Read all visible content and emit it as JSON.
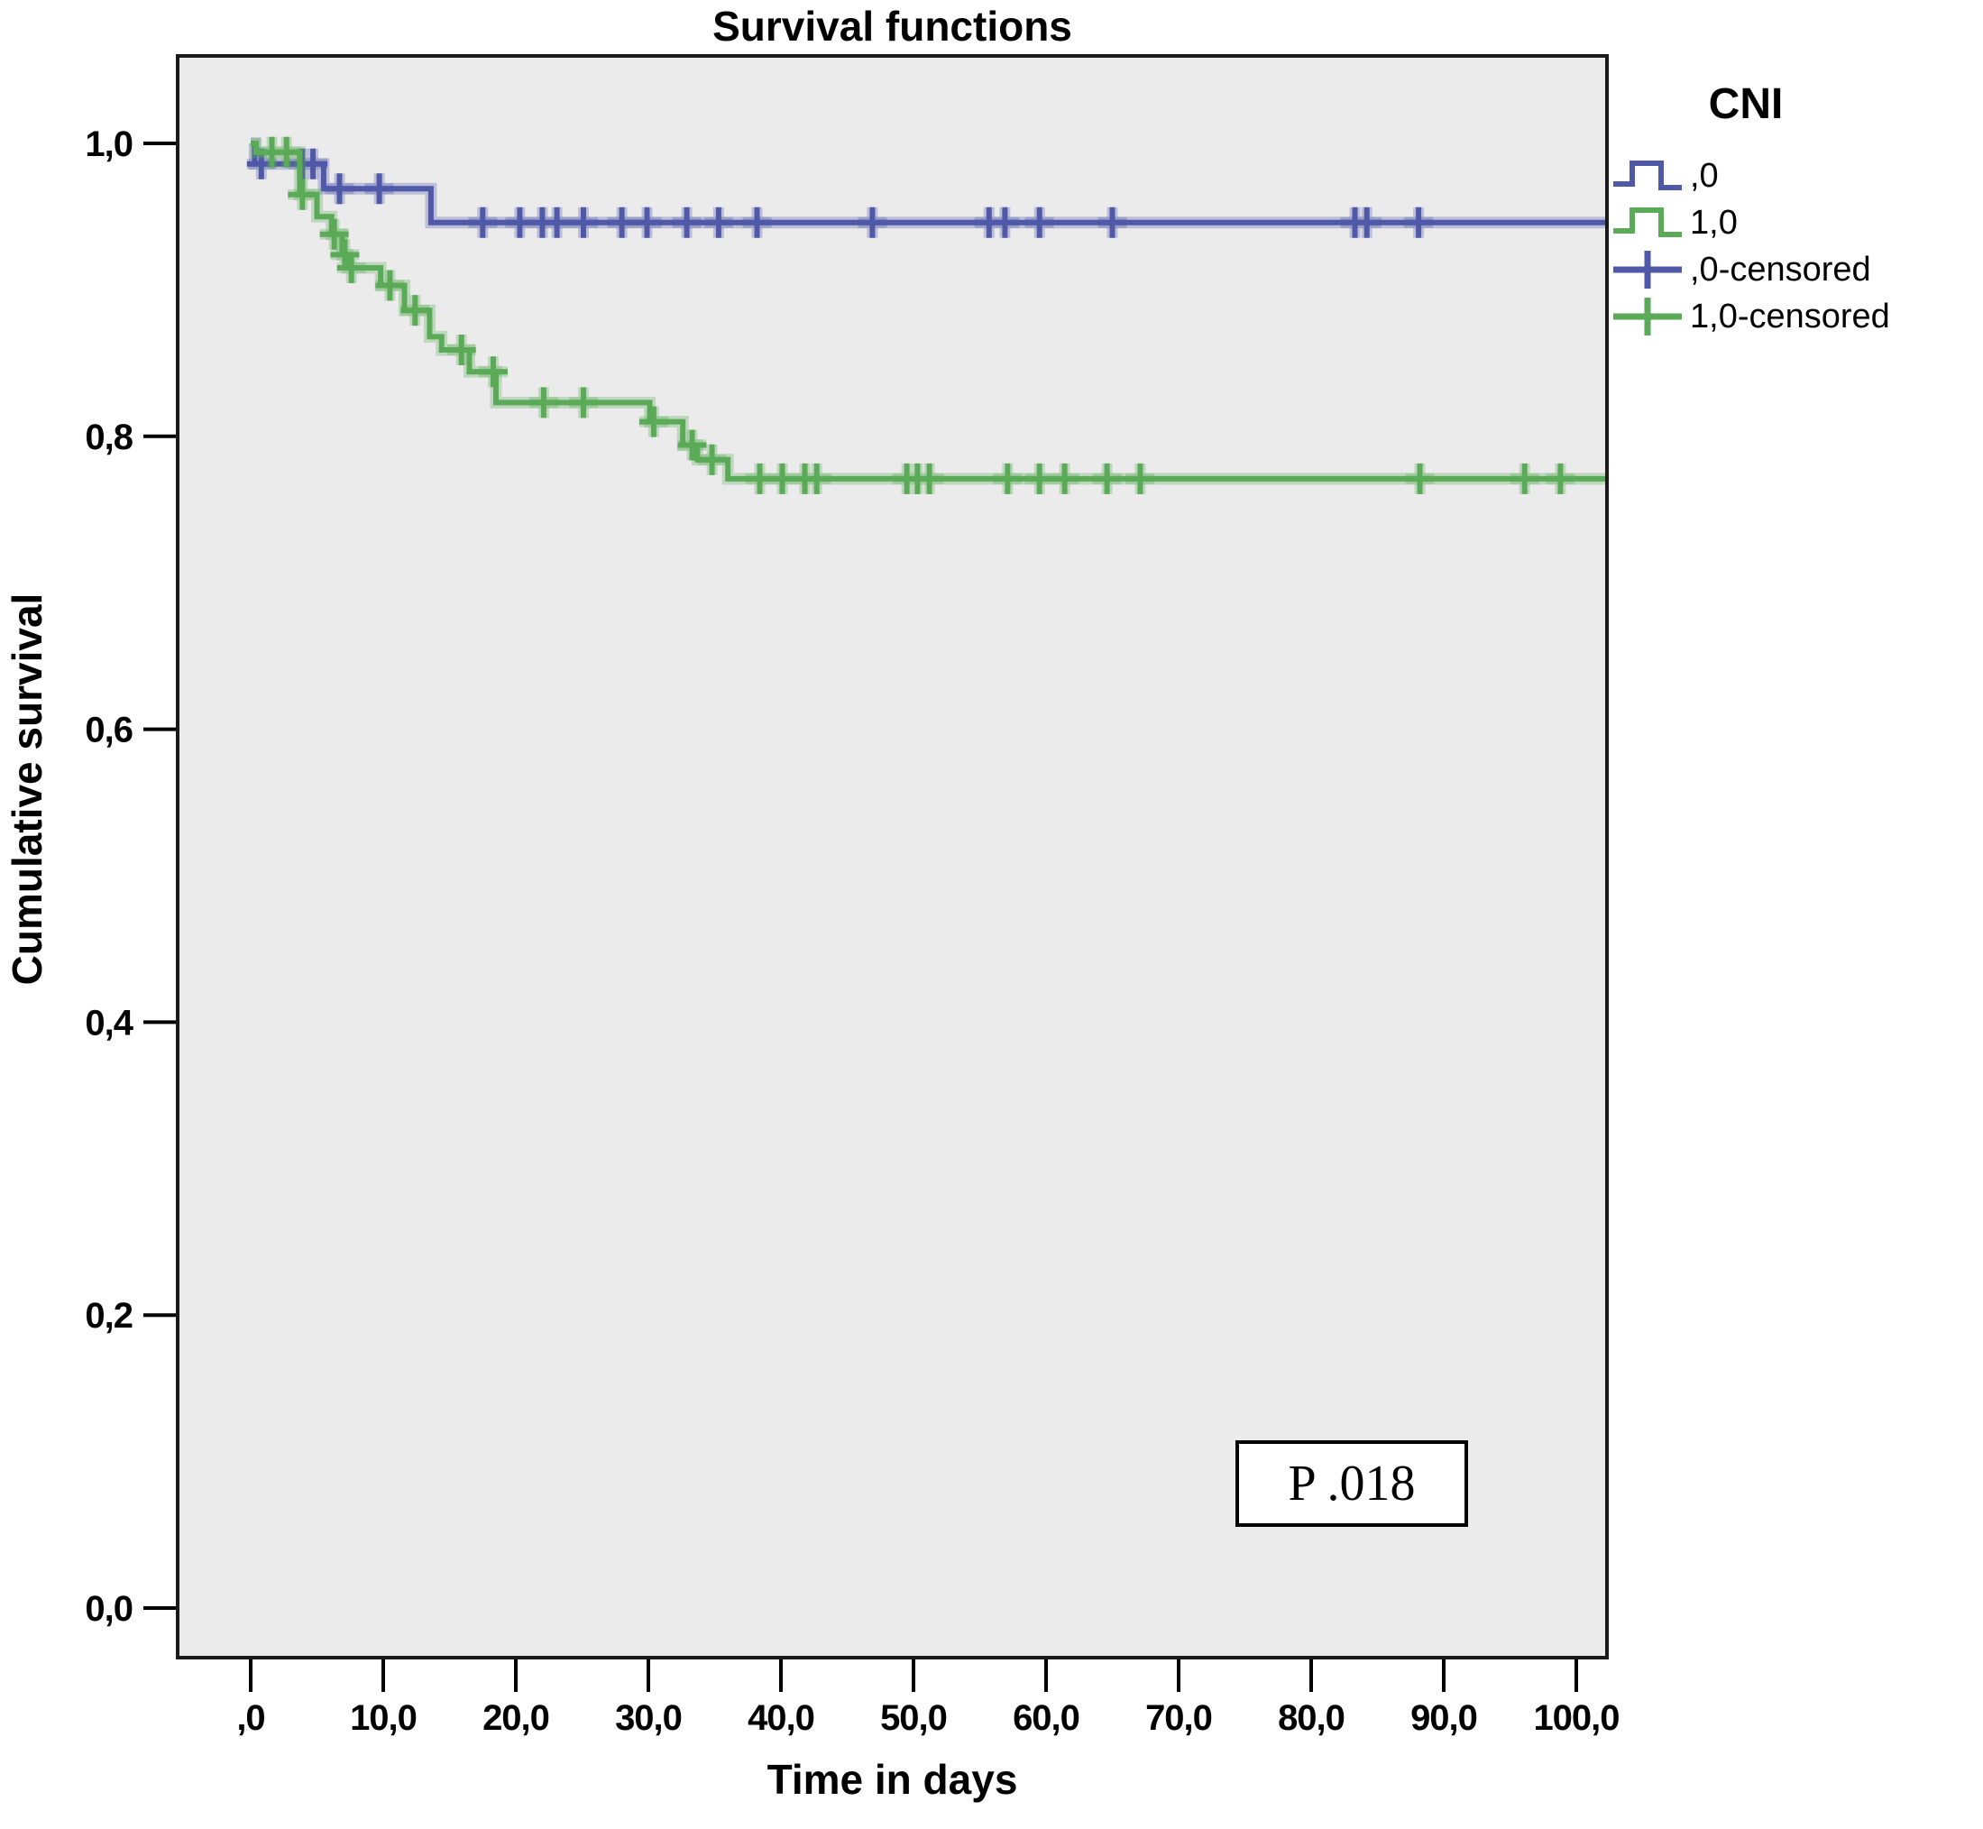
{
  "title": "Survival functions",
  "axes": {
    "x": {
      "label": "Time in days",
      "ticks": [
        ",0",
        "10,0",
        "20,0",
        "30,0",
        "40,0",
        "50,0",
        "60,0",
        "70,0",
        "80,0",
        "90,0",
        "100,0"
      ],
      "tick_values": [
        0,
        10,
        20,
        30,
        40,
        50,
        60,
        70,
        80,
        90,
        100
      ]
    },
    "y": {
      "label": "Cumulative survival",
      "ticks": [
        "0,0",
        "0,2",
        "0,4",
        "0,6",
        "0,8",
        "1,0"
      ],
      "tick_values": [
        0,
        0.2,
        0.4,
        0.6,
        0.8,
        1.0
      ]
    }
  },
  "legend": {
    "title": "CNI",
    "items": [
      {
        "label": ",0",
        "type": "line",
        "color": "#5059a8"
      },
      {
        "label": "1,0",
        "type": "line",
        "color": "#5aaa57"
      },
      {
        "label": ",0-censored",
        "type": "censor",
        "color": "#5059a8"
      },
      {
        "label": "1,0-censored",
        "type": "censor",
        "color": "#5aaa57"
      }
    ]
  },
  "annotation": {
    "p_value_label": "P .018"
  },
  "colors": {
    "series_0": "#5059a8",
    "series_1": "#5aaa57",
    "plot_background": "#ebebeb",
    "frame": "#1a1a1a"
  },
  "chart_data": {
    "type": "line",
    "subtype": "kaplan-meier-step",
    "title": "Survival functions",
    "xlabel": "Time in days",
    "ylabel": "Cumulative survival",
    "xlim": [
      -5.5,
      102.5
    ],
    "ylim": [
      -0.03,
      1.05
    ],
    "grid": false,
    "legend_position": "right",
    "series": [
      {
        "name": ",0",
        "color": "#5059a8",
        "steps": [
          [
            0,
            1.0
          ],
          [
            0.3,
            0.986
          ],
          [
            5.5,
            0.969
          ],
          [
            13.6,
            0.946
          ]
        ],
        "censored": [
          [
            0.8,
            0.986
          ],
          [
            3.9,
            0.986
          ],
          [
            4.7,
            0.986
          ],
          [
            6.7,
            0.969
          ],
          [
            9.7,
            0.969
          ],
          [
            17.5,
            0.946
          ],
          [
            20.3,
            0.946
          ],
          [
            22.0,
            0.946
          ],
          [
            23.1,
            0.946
          ],
          [
            25.1,
            0.946
          ],
          [
            28.0,
            0.946
          ],
          [
            29.9,
            0.946
          ],
          [
            32.9,
            0.946
          ],
          [
            35.3,
            0.946
          ],
          [
            38.2,
            0.946
          ],
          [
            46.9,
            0.946
          ],
          [
            55.7,
            0.946
          ],
          [
            56.9,
            0.946
          ],
          [
            59.5,
            0.946
          ],
          [
            65.0,
            0.946
          ],
          [
            83.3,
            0.946
          ],
          [
            84.2,
            0.946
          ],
          [
            88.1,
            0.946
          ]
        ]
      },
      {
        "name": "1,0",
        "color": "#5aaa57",
        "steps": [
          [
            0,
            1.0
          ],
          [
            0.4,
            0.994
          ],
          [
            3.7,
            0.965
          ],
          [
            5.0,
            0.95
          ],
          [
            6.1,
            0.938
          ],
          [
            6.9,
            0.924
          ],
          [
            7.3,
            0.915
          ],
          [
            9.8,
            0.903
          ],
          [
            11.6,
            0.886
          ],
          [
            13.5,
            0.868
          ],
          [
            14.4,
            0.859
          ],
          [
            16.5,
            0.844
          ],
          [
            18.5,
            0.823
          ],
          [
            30.1,
            0.81
          ],
          [
            32.6,
            0.794
          ],
          [
            33.7,
            0.784
          ],
          [
            36.0,
            0.771
          ]
        ],
        "censored": [
          [
            1.6,
            0.994
          ],
          [
            2.7,
            0.994
          ],
          [
            3.9,
            0.965
          ],
          [
            6.3,
            0.938
          ],
          [
            7.1,
            0.924
          ],
          [
            7.6,
            0.915
          ],
          [
            10.5,
            0.903
          ],
          [
            12.4,
            0.886
          ],
          [
            15.9,
            0.859
          ],
          [
            18.3,
            0.844
          ],
          [
            22.1,
            0.823
          ],
          [
            25.1,
            0.823
          ],
          [
            30.4,
            0.81
          ],
          [
            33.3,
            0.794
          ],
          [
            34.8,
            0.784
          ],
          [
            38.4,
            0.771
          ],
          [
            40.1,
            0.771
          ],
          [
            41.8,
            0.771
          ],
          [
            42.7,
            0.771
          ],
          [
            49.5,
            0.771
          ],
          [
            50.3,
            0.771
          ],
          [
            51.2,
            0.771
          ],
          [
            57.1,
            0.771
          ],
          [
            59.5,
            0.771
          ],
          [
            61.4,
            0.771
          ],
          [
            64.6,
            0.771
          ],
          [
            67.1,
            0.771
          ],
          [
            88.2,
            0.771
          ],
          [
            96.1,
            0.771
          ],
          [
            98.8,
            0.771
          ]
        ]
      }
    ]
  }
}
